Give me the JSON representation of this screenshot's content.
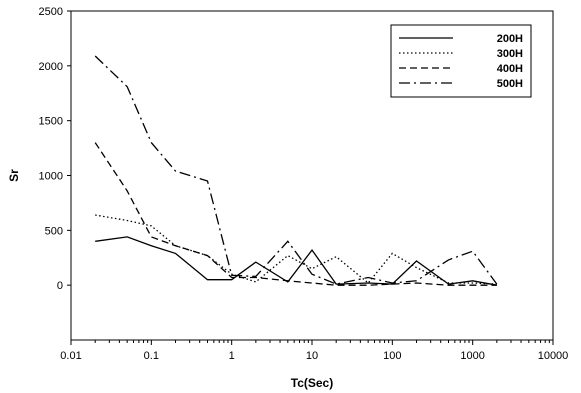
{
  "chart_data": {
    "type": "line",
    "title": "",
    "xlabel": "Tc(Sec)",
    "ylabel": "Sr",
    "xscale": "log",
    "xlim": [
      0.01,
      10000
    ],
    "ylim": [
      -500,
      2500
    ],
    "xticks": [
      0.01,
      0.1,
      1,
      10,
      100,
      1000,
      10000
    ],
    "xtick_labels": [
      "0.01",
      "0.1",
      "1",
      "10",
      "100",
      "1000",
      "10000"
    ],
    "yticks": [
      0,
      500,
      1000,
      1500,
      2000,
      2500
    ],
    "ytick_labels": [
      "0",
      "500",
      "1000",
      "1500",
      "2000",
      "2500"
    ],
    "grid": false,
    "legend_position": "top-right",
    "series": [
      {
        "name": "200H",
        "style": "solid",
        "color": "#000000",
        "x": [
          0.02,
          0.05,
          0.1,
          0.2,
          0.5,
          1,
          2,
          5,
          10,
          20,
          50,
          100,
          200,
          500,
          1000,
          2000
        ],
        "y": [
          400,
          440,
          360,
          290,
          50,
          50,
          210,
          30,
          320,
          10,
          20,
          10,
          220,
          10,
          40,
          0
        ]
      },
      {
        "name": "300H",
        "style": "dotted",
        "color": "#000000",
        "x": [
          0.02,
          0.05,
          0.1,
          0.2,
          0.5,
          1,
          2,
          5,
          10,
          20,
          50,
          100,
          200,
          500,
          1000,
          2000
        ],
        "y": [
          640,
          590,
          540,
          360,
          270,
          100,
          30,
          270,
          150,
          260,
          20,
          290,
          160,
          20,
          20,
          10
        ]
      },
      {
        "name": "400H",
        "style": "dashed",
        "color": "#000000",
        "x": [
          0.02,
          0.05,
          0.1,
          0.2,
          0.5,
          1,
          2,
          5,
          10,
          20,
          50,
          100,
          200,
          500,
          1000,
          2000
        ],
        "y": [
          1300,
          860,
          440,
          360,
          270,
          70,
          70,
          40,
          20,
          0,
          0,
          10,
          20,
          0,
          0,
          0
        ]
      },
      {
        "name": "500H",
        "style": "dash-dot",
        "color": "#000000",
        "x": [
          0.02,
          0.05,
          0.1,
          0.2,
          0.5,
          1,
          2,
          5,
          10,
          20,
          50,
          100,
          200,
          500,
          1000,
          2000
        ],
        "y": [
          2090,
          1810,
          1300,
          1040,
          950,
          90,
          80,
          400,
          100,
          10,
          70,
          20,
          40,
          230,
          310,
          10
        ]
      }
    ]
  }
}
